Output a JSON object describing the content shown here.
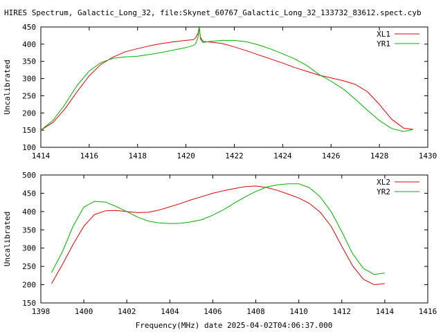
{
  "title": "HIRES Spectrum, Galactic_Long_32, file:Skynet_60767_Galactic_Long_32_133732_83612.spect.cyb",
  "xlabel": "Frequency(MHz) date 2025-04-02T04:06:37.000",
  "colors": {
    "red": "#e00000",
    "green": "#00b000",
    "axis": "#000000",
    "background": "#ffffff"
  },
  "chart_data": [
    {
      "type": "line",
      "ylabel": "Uncalibrated",
      "xlim": [
        1414,
        1430
      ],
      "ylim": [
        100,
        450
      ],
      "xticks": [
        1414,
        1416,
        1418,
        1420,
        1422,
        1424,
        1426,
        1428,
        1430
      ],
      "yticks": [
        100,
        150,
        200,
        250,
        300,
        350,
        400,
        450
      ],
      "legend_position": "top-right",
      "grid": false,
      "series": [
        {
          "name": "XL1",
          "color": "#e00000",
          "x": [
            1414.0,
            1414.5,
            1415.0,
            1415.5,
            1416.0,
            1416.5,
            1417.0,
            1417.5,
            1418.0,
            1418.5,
            1419.0,
            1419.5,
            1420.0,
            1420.3,
            1420.4,
            1420.5,
            1420.55,
            1420.6,
            1420.7,
            1421.0,
            1421.5,
            1422.0,
            1422.5,
            1423.0,
            1423.5,
            1424.0,
            1424.5,
            1425.0,
            1425.5,
            1426.0,
            1426.5,
            1427.0,
            1427.5,
            1428.0,
            1428.5,
            1429.0,
            1429.4
          ],
          "y": [
            150,
            172,
            212,
            262,
            308,
            342,
            363,
            378,
            387,
            395,
            402,
            407,
            411,
            413,
            418,
            432,
            450,
            420,
            408,
            406,
            402,
            392,
            381,
            369,
            357,
            345,
            332,
            321,
            310,
            302,
            294,
            283,
            262,
            225,
            182,
            156,
            152
          ]
        },
        {
          "name": "YR1",
          "color": "#00b000",
          "x": [
            1414.0,
            1414.5,
            1415.0,
            1415.5,
            1416.0,
            1416.5,
            1417.0,
            1417.5,
            1418.0,
            1418.5,
            1419.0,
            1419.5,
            1420.0,
            1420.3,
            1420.4,
            1420.5,
            1420.55,
            1420.6,
            1420.7,
            1421.0,
            1421.5,
            1422.0,
            1422.5,
            1423.0,
            1423.5,
            1424.0,
            1424.5,
            1425.0,
            1425.5,
            1426.0,
            1426.5,
            1427.0,
            1427.5,
            1428.0,
            1428.5,
            1429.0,
            1429.4
          ],
          "y": [
            150,
            178,
            225,
            280,
            322,
            347,
            359,
            363,
            365,
            370,
            376,
            383,
            390,
            396,
            401,
            420,
            452,
            415,
            405,
            408,
            411,
            411,
            407,
            398,
            386,
            372,
            357,
            338,
            312,
            292,
            270,
            240,
            208,
            178,
            155,
            146,
            152
          ]
        }
      ]
    },
    {
      "type": "line",
      "ylabel": "Uncalibrated",
      "xlim": [
        1398,
        1416
      ],
      "ylim": [
        150,
        500
      ],
      "xticks": [
        1398,
        1400,
        1402,
        1404,
        1406,
        1408,
        1410,
        1412,
        1414,
        1416
      ],
      "yticks": [
        150,
        200,
        250,
        300,
        350,
        400,
        450,
        500
      ],
      "legend_position": "top-right",
      "grid": false,
      "series": [
        {
          "name": "XL2",
          "color": "#e00000",
          "x": [
            1398.5,
            1399.0,
            1399.5,
            1400.0,
            1400.5,
            1401.0,
            1401.5,
            1402.0,
            1402.5,
            1403.0,
            1403.5,
            1404.0,
            1404.5,
            1405.0,
            1405.5,
            1406.0,
            1406.5,
            1407.0,
            1407.5,
            1408.0,
            1408.5,
            1409.0,
            1409.5,
            1410.0,
            1410.5,
            1411.0,
            1411.5,
            1412.0,
            1412.5,
            1413.0,
            1413.5,
            1414.0
          ],
          "y": [
            203,
            255,
            310,
            360,
            392,
            402,
            403,
            400,
            397,
            398,
            404,
            413,
            422,
            432,
            441,
            450,
            457,
            463,
            468,
            470,
            466,
            458,
            448,
            437,
            422,
            398,
            360,
            305,
            252,
            215,
            200,
            203
          ]
        },
        {
          "name": "YR2",
          "color": "#00b000",
          "x": [
            1398.5,
            1399.0,
            1399.5,
            1400.0,
            1400.5,
            1401.0,
            1401.5,
            1402.0,
            1402.5,
            1403.0,
            1403.5,
            1404.0,
            1404.5,
            1405.0,
            1405.5,
            1406.0,
            1406.5,
            1407.0,
            1407.5,
            1408.0,
            1408.5,
            1409.0,
            1409.5,
            1410.0,
            1410.5,
            1411.0,
            1411.5,
            1412.0,
            1412.5,
            1413.0,
            1413.5,
            1414.0
          ],
          "y": [
            233,
            290,
            360,
            412,
            428,
            426,
            414,
            400,
            385,
            374,
            369,
            367,
            368,
            372,
            378,
            390,
            405,
            423,
            440,
            455,
            467,
            473,
            476,
            476,
            465,
            440,
            400,
            345,
            285,
            245,
            228,
            232
          ]
        }
      ]
    }
  ]
}
